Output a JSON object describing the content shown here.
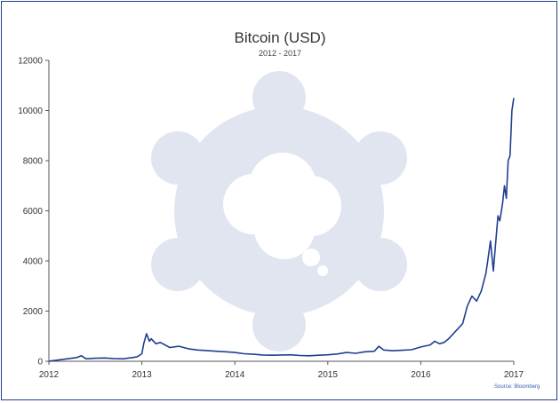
{
  "chart_data": {
    "type": "line",
    "title": "Bitcoin (USD)",
    "subtitle": "2012 - 2017",
    "source": "Source: Bloomberg",
    "xlabel": "",
    "ylabel": "",
    "xlim": [
      2012,
      2017
    ],
    "ylim": [
      0,
      12000
    ],
    "x_ticks": [
      2012,
      2013,
      2014,
      2015,
      2016,
      2017
    ],
    "x_tick_labels": [
      "2012",
      "2013",
      "2014",
      "2015",
      "2016",
      "2017"
    ],
    "y_ticks": [
      0,
      2000,
      4000,
      6000,
      8000,
      10000,
      12000
    ],
    "y_tick_labels": [
      "0",
      "2000",
      "4000",
      "6000",
      "8000",
      "10000",
      "12000"
    ],
    "grid": false,
    "series": [
      {
        "name": "Bitcoin (USD)",
        "color": "#1f3f8f",
        "x": [
          2012.0,
          2012.1,
          2012.2,
          2012.3,
          2012.35,
          2012.4,
          2012.5,
          2012.6,
          2012.7,
          2012.8,
          2012.9,
          2012.95,
          2013.0,
          2013.02,
          2013.05,
          2013.08,
          2013.1,
          2013.15,
          2013.2,
          2013.3,
          2013.4,
          2013.5,
          2013.6,
          2013.7,
          2013.8,
          2013.9,
          2014.0,
          2014.1,
          2014.2,
          2014.3,
          2014.4,
          2014.5,
          2014.6,
          2014.7,
          2014.8,
          2014.9,
          2015.0,
          2015.1,
          2015.2,
          2015.3,
          2015.4,
          2015.5,
          2015.55,
          2015.6,
          2015.7,
          2015.8,
          2015.9,
          2016.0,
          2016.1,
          2016.15,
          2016.2,
          2016.25,
          2016.3,
          2016.35,
          2016.4,
          2016.45,
          2016.5,
          2016.55,
          2016.6,
          2016.65,
          2016.7,
          2016.72,
          2016.75,
          2016.78,
          2016.8,
          2016.83,
          2016.85,
          2016.88,
          2016.9,
          2016.92,
          2016.94,
          2016.96,
          2016.98,
          2017.0
        ],
        "y": [
          5,
          50,
          100,
          150,
          220,
          100,
          120,
          130,
          110,
          100,
          150,
          180,
          300,
          700,
          1100,
          800,
          900,
          700,
          750,
          550,
          600,
          500,
          450,
          430,
          400,
          380,
          350,
          300,
          280,
          250,
          240,
          250,
          260,
          230,
          220,
          240,
          260,
          290,
          350,
          320,
          380,
          400,
          600,
          450,
          420,
          440,
          460,
          570,
          650,
          800,
          700,
          750,
          900,
          1100,
          1300,
          1500,
          2200,
          2600,
          2400,
          2800,
          3500,
          4000,
          4800,
          3600,
          4500,
          5800,
          5600,
          6300,
          7000,
          6500,
          8000,
          8200,
          10000,
          10500
        ]
      }
    ]
  }
}
